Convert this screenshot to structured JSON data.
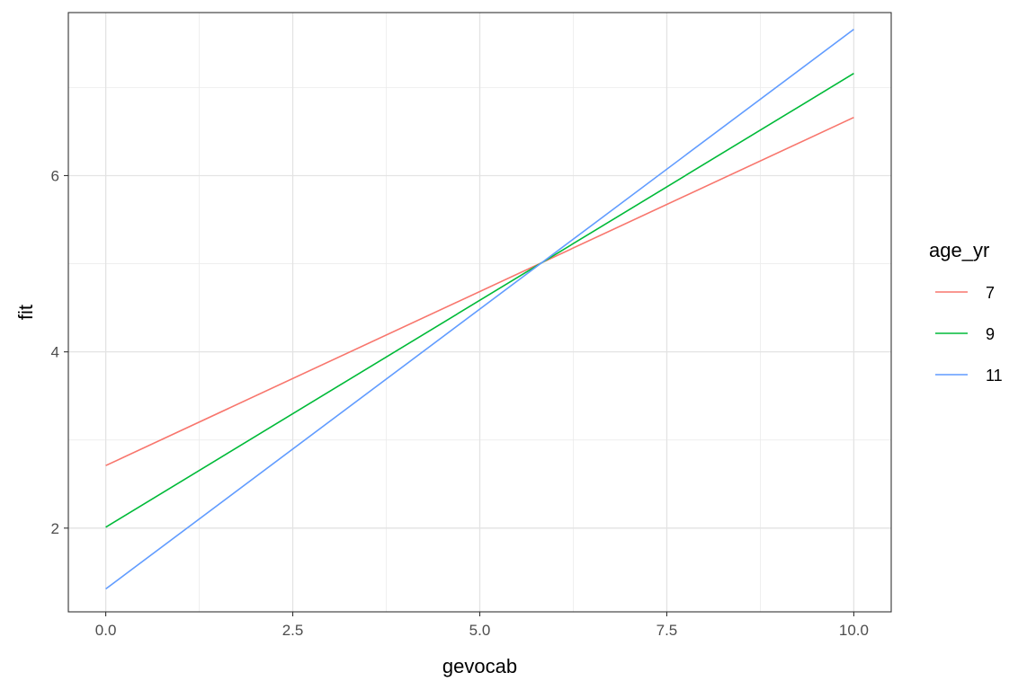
{
  "chart_data": {
    "type": "line",
    "title": "",
    "xlabel": "gevocab",
    "ylabel": "fit",
    "xlim": [
      -0.5,
      10.5
    ],
    "ylim": [
      1.05,
      7.85
    ],
    "x_ticks": [
      0.0,
      2.5,
      5.0,
      7.5,
      10.0
    ],
    "x_tick_labels": [
      "0.0",
      "2.5",
      "5.0",
      "7.5",
      "10.0"
    ],
    "x_minor_ticks": [
      1.25,
      3.75,
      6.25,
      8.75
    ],
    "y_ticks": [
      2,
      4,
      6
    ],
    "y_tick_labels": [
      "2",
      "4",
      "6"
    ],
    "y_minor_ticks": [
      3,
      5,
      7
    ],
    "grid": true,
    "legend": {
      "title": "age_yr",
      "position": "right"
    },
    "series": [
      {
        "name": "7",
        "color": "#F8766D",
        "x": [
          0,
          10
        ],
        "y": [
          2.71,
          6.66
        ]
      },
      {
        "name": "9",
        "color": "#00BA38",
        "x": [
          0,
          10
        ],
        "y": [
          2.01,
          7.16
        ]
      },
      {
        "name": "11",
        "color": "#619CFF",
        "x": [
          0,
          10
        ],
        "y": [
          1.31,
          7.66
        ]
      }
    ]
  }
}
